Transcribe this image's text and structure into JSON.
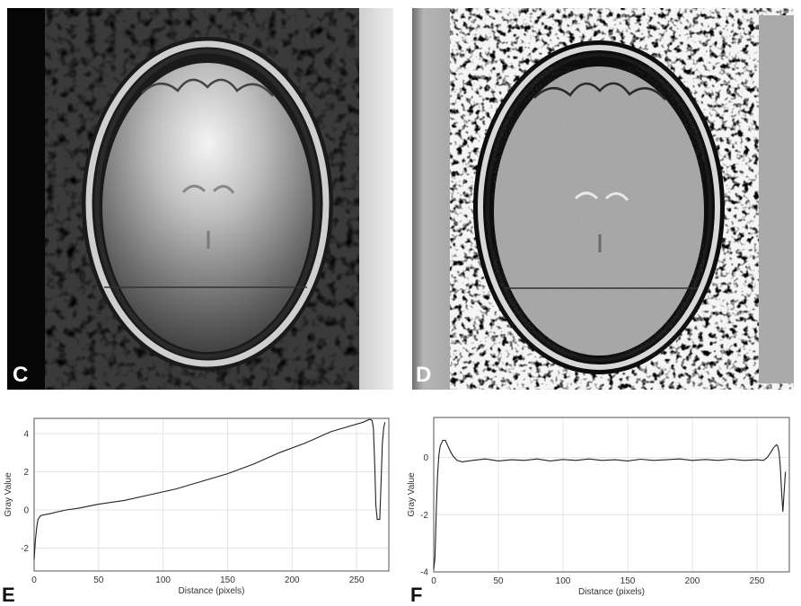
{
  "panels": [
    {
      "letter": "C"
    },
    {
      "letter": "D"
    }
  ],
  "colors": {
    "profile_line": "#333333",
    "plot_line": "#222222",
    "grid": "#e4e4e4",
    "frame": "#555555"
  },
  "chart_data": [
    {
      "type": "line",
      "letter": "E",
      "xlabel": "Distance (pixels)",
      "ylabel": "Gray Value",
      "xlim": [
        0,
        275
      ],
      "ylim": [
        -3.2,
        4.8
      ],
      "xticks": [
        0,
        50,
        100,
        150,
        200,
        250
      ],
      "yticks": [
        -2,
        0,
        2,
        4
      ],
      "grid": true,
      "series": [
        {
          "x": [
            0,
            1,
            2,
            3,
            5,
            8,
            12,
            18,
            25,
            35,
            50,
            70,
            90,
            110,
            130,
            150,
            170,
            190,
            210,
            230,
            245,
            255,
            260,
            262,
            263,
            264,
            265,
            266,
            267,
            268,
            269,
            270,
            271,
            272
          ],
          "y": [
            -2.6,
            -1.6,
            -0.9,
            -0.5,
            -0.3,
            -0.25,
            -0.2,
            -0.1,
            0.0,
            0.1,
            0.3,
            0.5,
            0.8,
            1.1,
            1.5,
            1.9,
            2.4,
            3.0,
            3.5,
            4.1,
            4.4,
            4.6,
            4.75,
            4.7,
            4.3,
            2.5,
            0.2,
            -0.5,
            -0.5,
            -0.5,
            1.5,
            3.5,
            4.3,
            4.6
          ]
        }
      ]
    },
    {
      "type": "line",
      "letter": "F",
      "xlabel": "Distance (pixels)",
      "ylabel": "Gray Value",
      "xlim": [
        0,
        275
      ],
      "ylim": [
        -4,
        1.4
      ],
      "xticks": [
        0,
        50,
        100,
        150,
        200,
        250
      ],
      "yticks": [
        -4,
        -2,
        0
      ],
      "grid": true,
      "series": [
        {
          "x": [
            0,
            1,
            2,
            3,
            4,
            5,
            7,
            9,
            11,
            13,
            15,
            18,
            22,
            30,
            40,
            50,
            60,
            70,
            80,
            90,
            100,
            110,
            120,
            130,
            140,
            150,
            160,
            170,
            180,
            190,
            200,
            210,
            220,
            230,
            240,
            250,
            255,
            258,
            261,
            263,
            265,
            266,
            267,
            268,
            269,
            270,
            271,
            272
          ],
          "y": [
            -3.9,
            -3.5,
            -1.8,
            -0.6,
            0.1,
            0.4,
            0.6,
            0.6,
            0.4,
            0.2,
            0.05,
            -0.1,
            -0.15,
            -0.1,
            -0.05,
            -0.12,
            -0.08,
            -0.1,
            -0.05,
            -0.12,
            -0.07,
            -0.1,
            -0.05,
            -0.1,
            -0.08,
            -0.12,
            -0.06,
            -0.1,
            -0.08,
            -0.05,
            -0.1,
            -0.07,
            -0.1,
            -0.06,
            -0.1,
            -0.08,
            -0.1,
            0.0,
            0.2,
            0.35,
            0.45,
            0.4,
            0.2,
            -0.3,
            -1.2,
            -1.9,
            -1.2,
            -0.5
          ]
        }
      ]
    }
  ]
}
